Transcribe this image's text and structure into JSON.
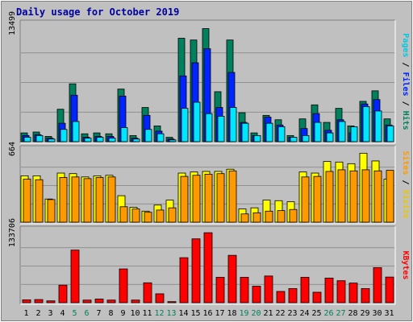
{
  "chart_data": {
    "type": "bar",
    "title": "Daily usage for October 2019",
    "categories": [
      "1",
      "2",
      "3",
      "4",
      "5",
      "6",
      "7",
      "8",
      "9",
      "10",
      "11",
      "12",
      "13",
      "14",
      "15",
      "16",
      "17",
      "18",
      "19",
      "20",
      "21",
      "22",
      "23",
      "24",
      "25",
      "26",
      "27",
      "28",
      "29",
      "30",
      "31"
    ],
    "weekend_days": [
      "5",
      "6",
      "12",
      "13",
      "19",
      "20",
      "26",
      "27"
    ],
    "panels": [
      {
        "id": "hits-files-pages",
        "max_label": "13499",
        "ylim": [
          0,
          13499
        ],
        "legend": [
          "Pages",
          "Files",
          "Hits"
        ],
        "series": [
          {
            "name": "Hits",
            "color": "#00805c",
            "values": [
              1000,
              1100,
              600,
              3700,
              6600,
              900,
              1000,
              900,
              6000,
              700,
              3900,
              1800,
              500,
              11800,
              11600,
              12900,
              5700,
              11600,
              3300,
              1000,
              3000,
              2500,
              700,
              2600,
              4200,
              2200,
              3800,
              1800,
              4600,
              5800,
              2600
            ]
          },
          {
            "name": "Files",
            "color": "#0024ff",
            "values": [
              700,
              800,
              400,
              2100,
              5300,
              500,
              600,
              600,
              5200,
              400,
              3000,
              1200,
              300,
              7500,
              9000,
              10600,
              3900,
              7900,
              2200,
              700,
              2800,
              1900,
              500,
              1500,
              3200,
              1300,
              2500,
              1000,
              4300,
              4800,
              1900
            ]
          },
          {
            "name": "Pages",
            "color": "#00e6ff",
            "values": [
              500,
              700,
              300,
              1400,
              2300,
              400,
              500,
              400,
              1600,
              300,
              1400,
              900,
              200,
              3800,
              4500,
              3200,
              2900,
              3900,
              2100,
              700,
              2100,
              1700,
              500,
              700,
              2200,
              1000,
              2300,
              1700,
              4000,
              3500,
              1800
            ]
          }
        ]
      },
      {
        "id": "visits-sites",
        "max_label": "664",
        "ylim": [
          0,
          664
        ],
        "legend": [
          "Sites",
          "Visits"
        ],
        "series": [
          {
            "name": "Visits",
            "color": "#ffff00",
            "values": [
              420,
              420,
              210,
              445,
              440,
              410,
              420,
              425,
              240,
              135,
              100,
              155,
              200,
              445,
              455,
              460,
              460,
              480,
              120,
              130,
              200,
              195,
              185,
              455,
              445,
              550,
              545,
              530,
              625,
              555,
              390
            ]
          },
          {
            "name": "Sites",
            "color": "#ff9900",
            "values": [
              390,
              385,
              205,
              405,
              410,
              395,
              405,
              410,
              140,
              120,
              90,
              110,
              130,
              415,
              425,
              435,
              440,
              465,
              75,
              85,
              100,
              105,
              115,
              410,
              415,
              460,
              475,
              465,
              475,
              465,
              470
            ]
          }
        ]
      },
      {
        "id": "kbytes",
        "max_label": "133706",
        "ylim": [
          0,
          140000
        ],
        "legend": [
          "KBytes"
        ],
        "series": [
          {
            "name": "KBytes",
            "color": "#ff0000",
            "values": [
              5500,
              6000,
              3500,
              33500,
              100500,
              5000,
              7000,
              5000,
              64500,
              5000,
              38000,
              17000,
              2000,
              86000,
              122000,
              133706,
              48500,
              90500,
              48500,
              31500,
              51000,
              21500,
              27000,
              48500,
              20000,
              47000,
              42000,
              37500,
              27000,
              67000,
              49000
            ]
          }
        ]
      }
    ],
    "legend_placement": "right",
    "grid": true
  }
}
